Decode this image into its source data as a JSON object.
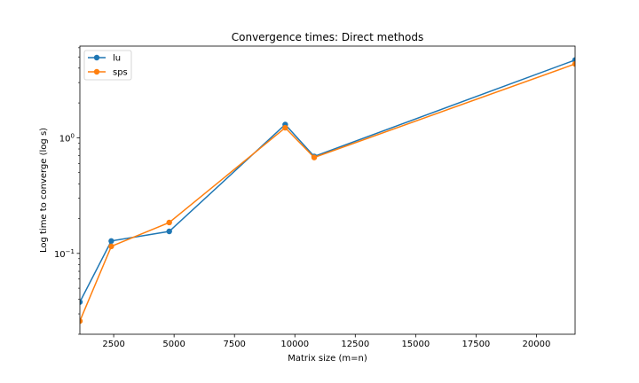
{
  "chart_data": {
    "type": "line",
    "title": "Convergence times: Direct methods",
    "xlabel": "Matrix size (m=n)",
    "ylabel": "Log time to converge (log s)",
    "yscale": "log",
    "xlim": [
      1100,
      21600
    ],
    "ylim": [
      0.02,
      6.2
    ],
    "x": [
      1100,
      2400,
      4800,
      9600,
      10800,
      21600
    ],
    "series": [
      {
        "name": "lu",
        "color": "#1f77b4",
        "values": [
          0.038,
          0.128,
          0.155,
          1.3,
          0.69,
          4.7
        ]
      },
      {
        "name": "sps",
        "color": "#ff7f0e",
        "values": [
          0.026,
          0.115,
          0.185,
          1.22,
          0.675,
          4.35
        ]
      }
    ],
    "xticks": [
      {
        "value": 2500,
        "label": "2500"
      },
      {
        "value": 5000,
        "label": "5000"
      },
      {
        "value": 7500,
        "label": "7500"
      },
      {
        "value": 10000,
        "label": "10000"
      },
      {
        "value": 12500,
        "label": "12500"
      },
      {
        "value": 15000,
        "label": "15000"
      },
      {
        "value": 17500,
        "label": "17500"
      },
      {
        "value": 20000,
        "label": "20000"
      }
    ],
    "yticks": [
      {
        "value": 0.1,
        "base": "10",
        "exponent": "−1"
      },
      {
        "value": 1,
        "base": "10",
        "exponent": "0"
      }
    ],
    "legend_position": "top-left",
    "grid": false
  }
}
